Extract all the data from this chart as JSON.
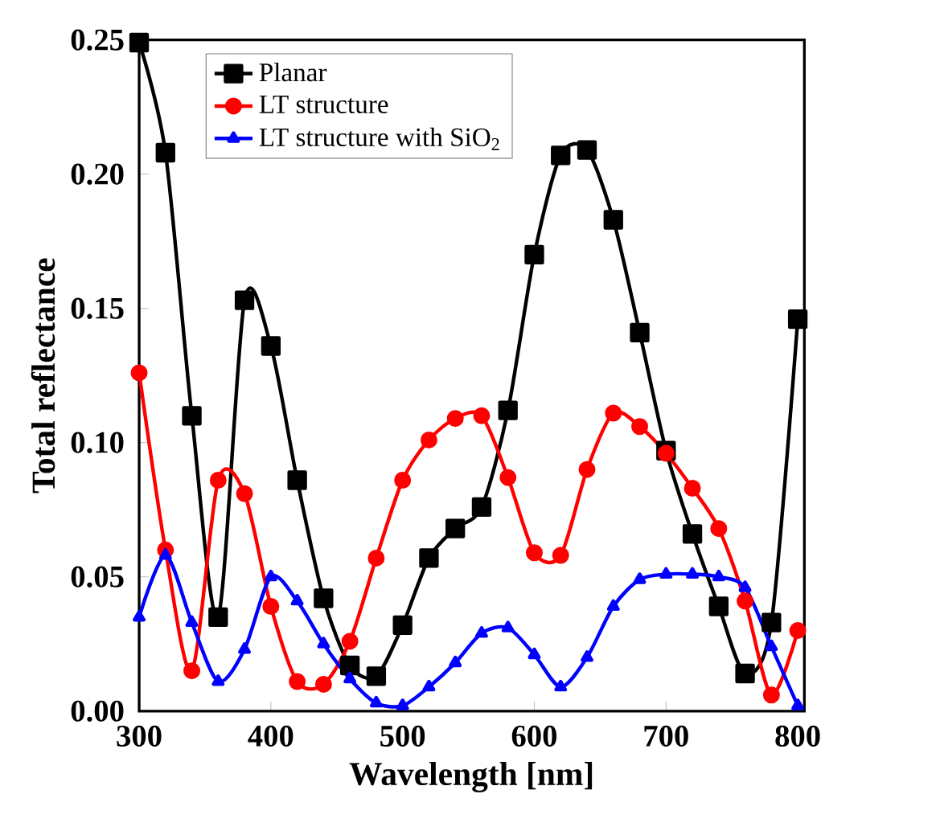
{
  "chart_data": {
    "type": "line",
    "xlabel": "Wavelength [nm]",
    "ylabel": "Total reflectance",
    "x": [
      300,
      320,
      340,
      360,
      380,
      400,
      420,
      440,
      460,
      480,
      500,
      520,
      540,
      560,
      580,
      600,
      620,
      640,
      660,
      680,
      700,
      720,
      740,
      760,
      780,
      800
    ],
    "series": [
      {
        "name": "Planar",
        "color": "#000000",
        "marker": "square",
        "values": [
          0.249,
          0.208,
          0.11,
          0.035,
          0.153,
          0.136,
          0.086,
          0.042,
          0.017,
          0.013,
          0.032,
          0.057,
          0.068,
          0.076,
          0.112,
          0.17,
          0.207,
          0.209,
          0.183,
          0.141,
          0.097,
          0.066,
          0.039,
          0.014,
          0.033,
          0.146
        ]
      },
      {
        "name": "LT structure",
        "color": "#ff0000",
        "marker": "circle",
        "values": [
          0.126,
          0.06,
          0.015,
          0.086,
          0.081,
          0.039,
          0.011,
          0.01,
          0.026,
          0.057,
          0.086,
          0.101,
          0.109,
          0.11,
          0.087,
          0.059,
          0.058,
          0.09,
          0.111,
          0.106,
          0.096,
          0.083,
          0.068,
          0.041,
          0.006,
          0.03
        ]
      },
      {
        "name": "LT structure with SiO$_{2}$",
        "color": "#0000ff",
        "marker": "triangle",
        "values": [
          0.035,
          0.058,
          0.033,
          0.011,
          0.023,
          0.05,
          0.041,
          0.025,
          0.012,
          0.003,
          0.002,
          0.009,
          0.018,
          0.029,
          0.031,
          0.021,
          0.009,
          0.02,
          0.039,
          0.049,
          0.051,
          0.051,
          0.05,
          0.046,
          0.024,
          0.002
        ]
      }
    ],
    "xlim": [
      300,
      805
    ],
    "ylim": [
      0,
      0.25
    ],
    "xticks": [
      300,
      400,
      500,
      600,
      700,
      800
    ],
    "yticks": [
      {
        "value": 0,
        "label": "0.00"
      },
      {
        "value": 0.05,
        "label": "0.05"
      },
      {
        "value": 0.1,
        "label": "0.10"
      },
      {
        "value": 0.15,
        "label": "0.15"
      },
      {
        "value": 0.2,
        "label": "0.20"
      },
      {
        "value": 0.25,
        "label": "0.25"
      }
    ],
    "grid": false,
    "legend": "top left",
    "line_style": "solid"
  }
}
